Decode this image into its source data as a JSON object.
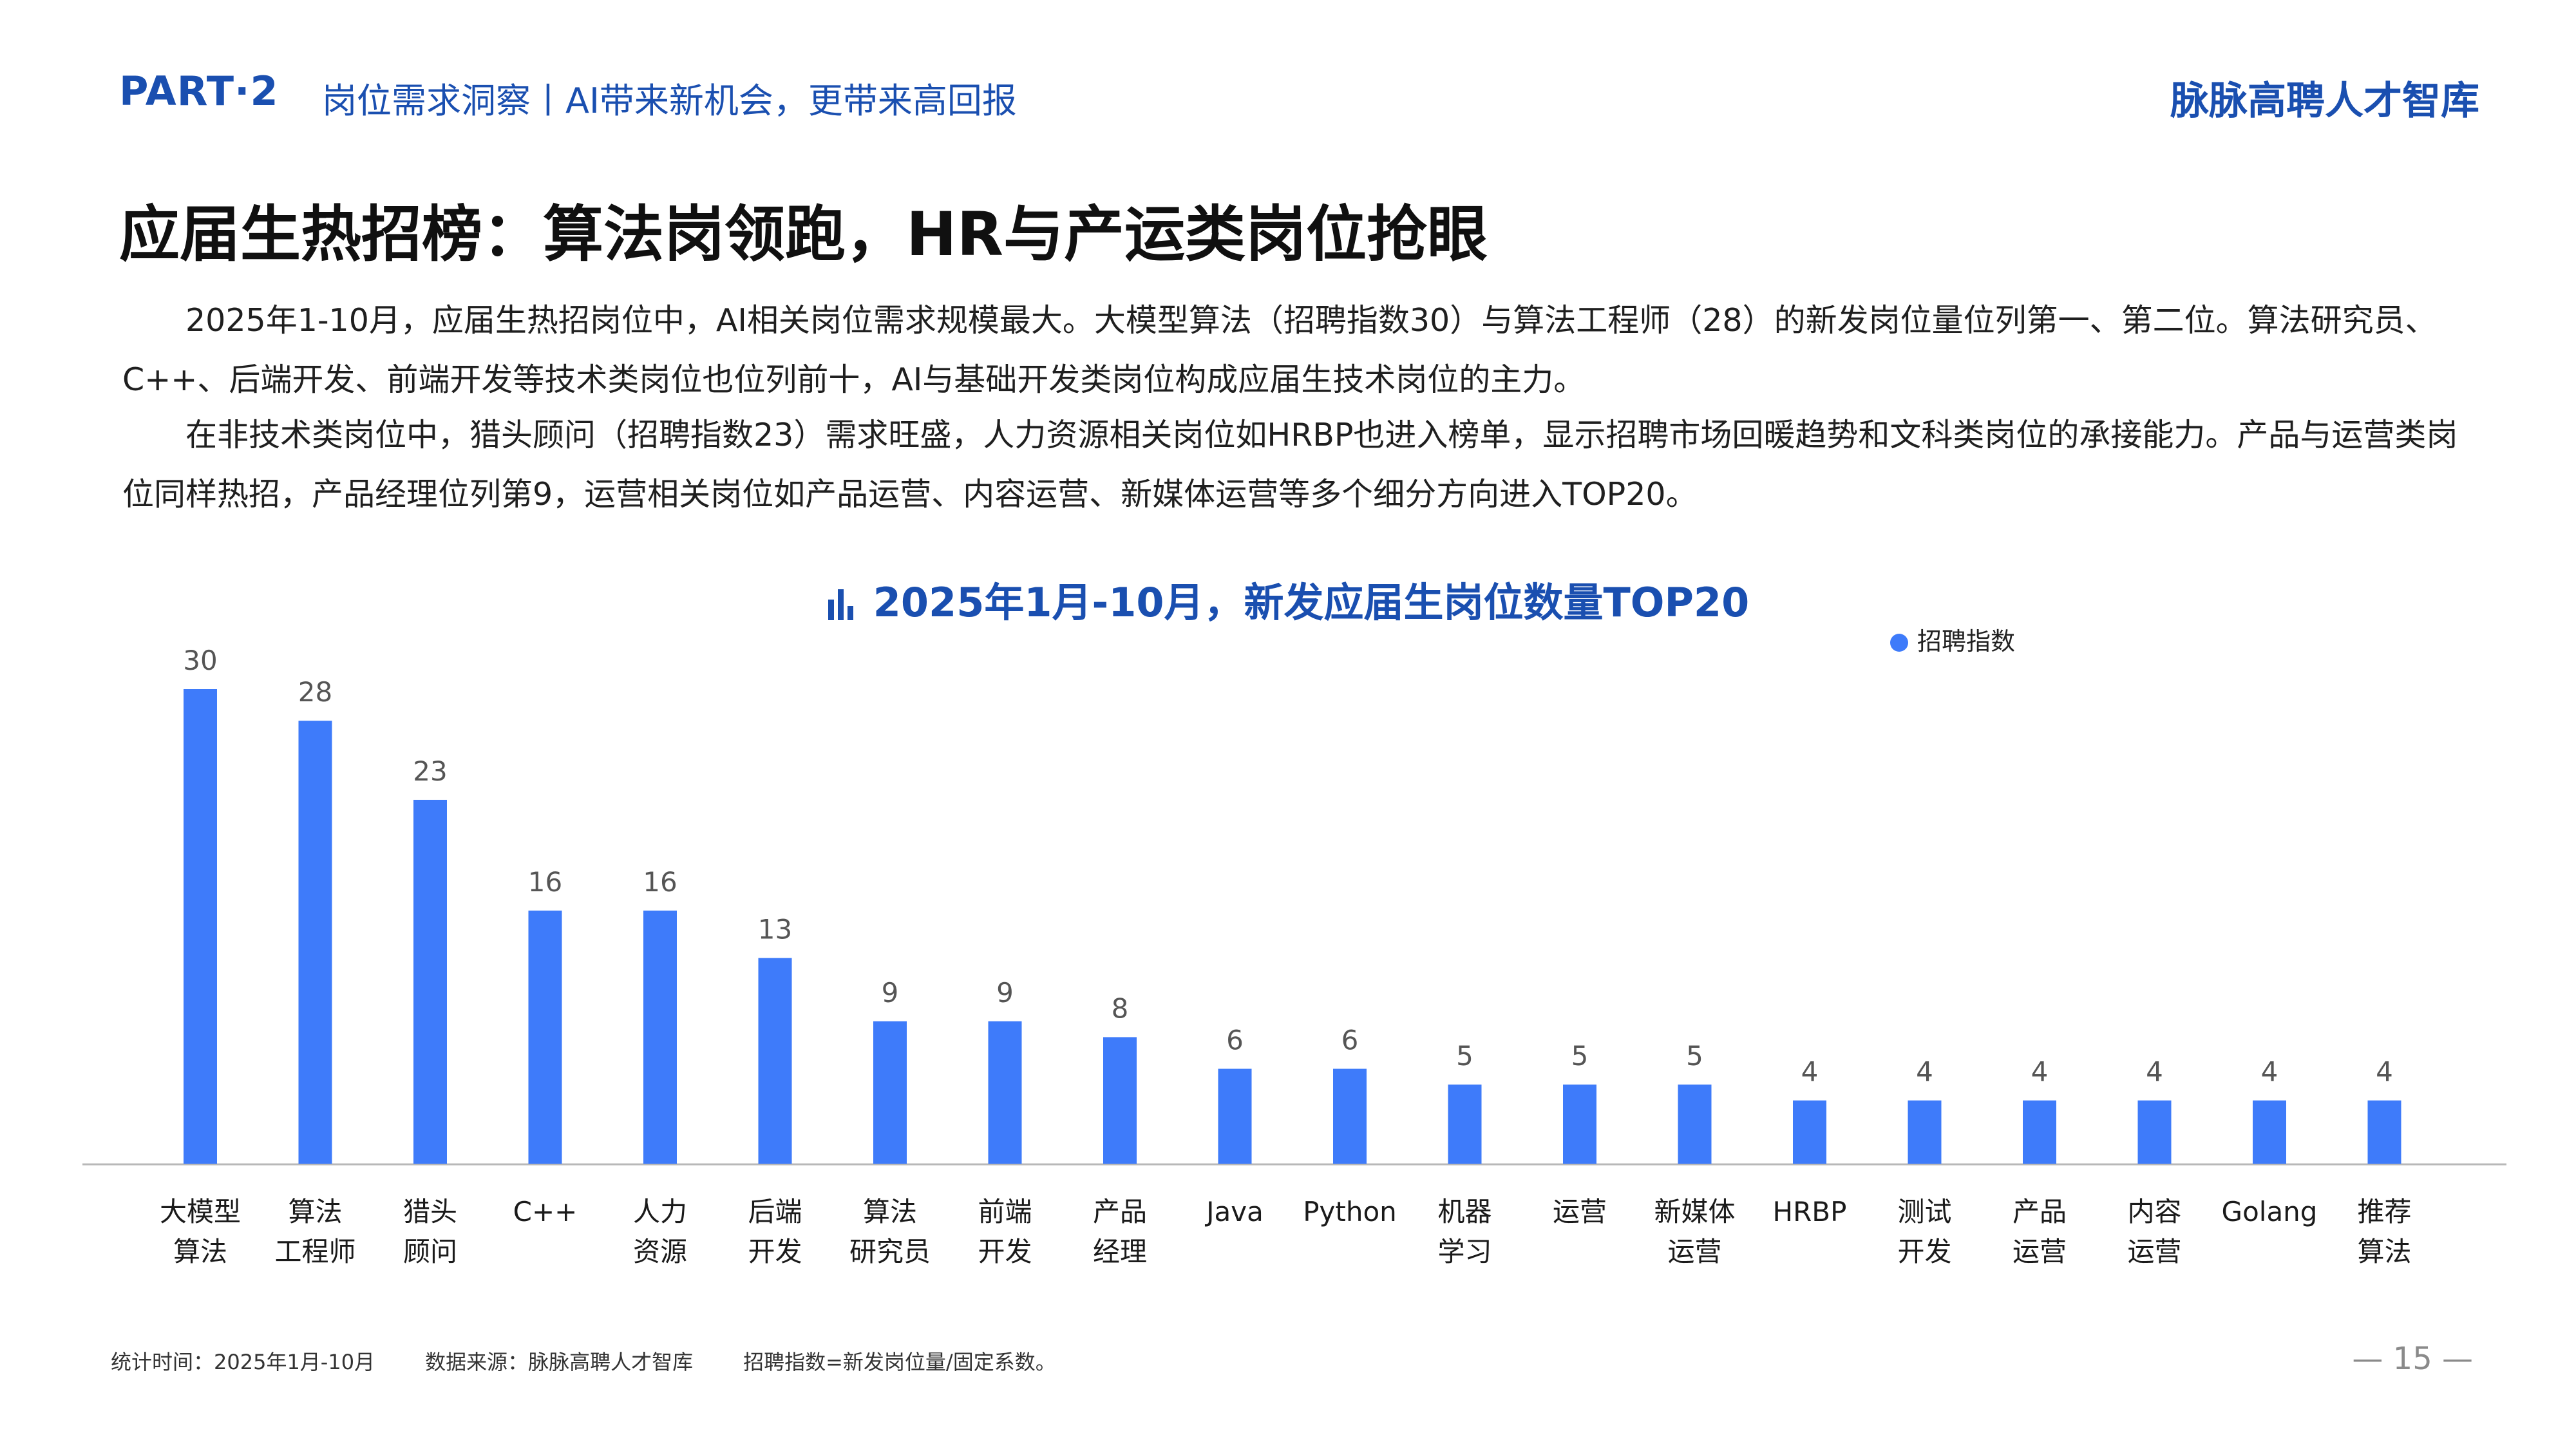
{
  "header": {
    "part": "PART·2",
    "subtitle": "岗位需求洞察丨AI带来新机会，更带来高回报",
    "brand": "脉脉高聘人才智库"
  },
  "page_title": "应届生热招榜：算法岗领跑，HR与产运类岗位抢眼",
  "paragraphs": [
    "2025年1-10月，应届生热招岗位中，AI相关岗位需求规模最大。大模型算法（招聘指数30）与算法工程师（28）的新发岗位量位列第一、第二位。算法研究员、C++、后端开发、前端开发等技术类岗位也位列前十，AI与基础开发类岗位构成应届生技术岗位的主力。",
    "在非技术类岗位中，猎头顾问（招聘指数23）需求旺盛，人力资源相关岗位如HRBP也进入榜单，显示招聘市场回暖趋势和文科类岗位的承接能力。产品与运营类岗位同样热招，产品经理位列第9，运营相关岗位如产品运营、内容运营、新媒体运营等多个细分方向进入TOP20。"
  ],
  "chart_data": {
    "type": "bar",
    "title": "2025年1月-10月，新发应届生岗位数量TOP20",
    "title_icon": "bar-chart-icon",
    "legend": [
      "招聘指数"
    ],
    "legend_position": "top-right",
    "bar_color": "#3e7bfa",
    "categories": [
      [
        "大模型",
        "算法"
      ],
      [
        "算法",
        "工程师"
      ],
      [
        "猎头",
        "顾问"
      ],
      [
        "C++"
      ],
      [
        "人力",
        "资源"
      ],
      [
        "后端",
        "开发"
      ],
      [
        "算法",
        "研究员"
      ],
      [
        "前端",
        "开发"
      ],
      [
        "产品",
        "经理"
      ],
      [
        "Java"
      ],
      [
        "Python"
      ],
      [
        "机器",
        "学习"
      ],
      [
        "运营"
      ],
      [
        "新媒体",
        "运营"
      ],
      [
        "HRBP"
      ],
      [
        "测试",
        "开发"
      ],
      [
        "产品",
        "运营"
      ],
      [
        "内容",
        "运营"
      ],
      [
        "Golang"
      ],
      [
        "推荐",
        "算法"
      ]
    ],
    "series": [
      {
        "name": "招聘指数",
        "values": [
          30,
          28,
          23,
          16,
          16,
          13,
          9,
          9,
          8,
          6,
          6,
          5,
          5,
          5,
          4,
          4,
          4,
          4,
          4,
          4
        ]
      }
    ],
    "ylim": [
      0,
      30
    ],
    "grid": false
  },
  "footer": {
    "stat_time": "统计时间：2025年1月-10月",
    "source": "数据来源：脉脉高聘人才智库",
    "note": "招聘指数=新发岗位量/固定系数。",
    "page_number": "— 15 —"
  }
}
